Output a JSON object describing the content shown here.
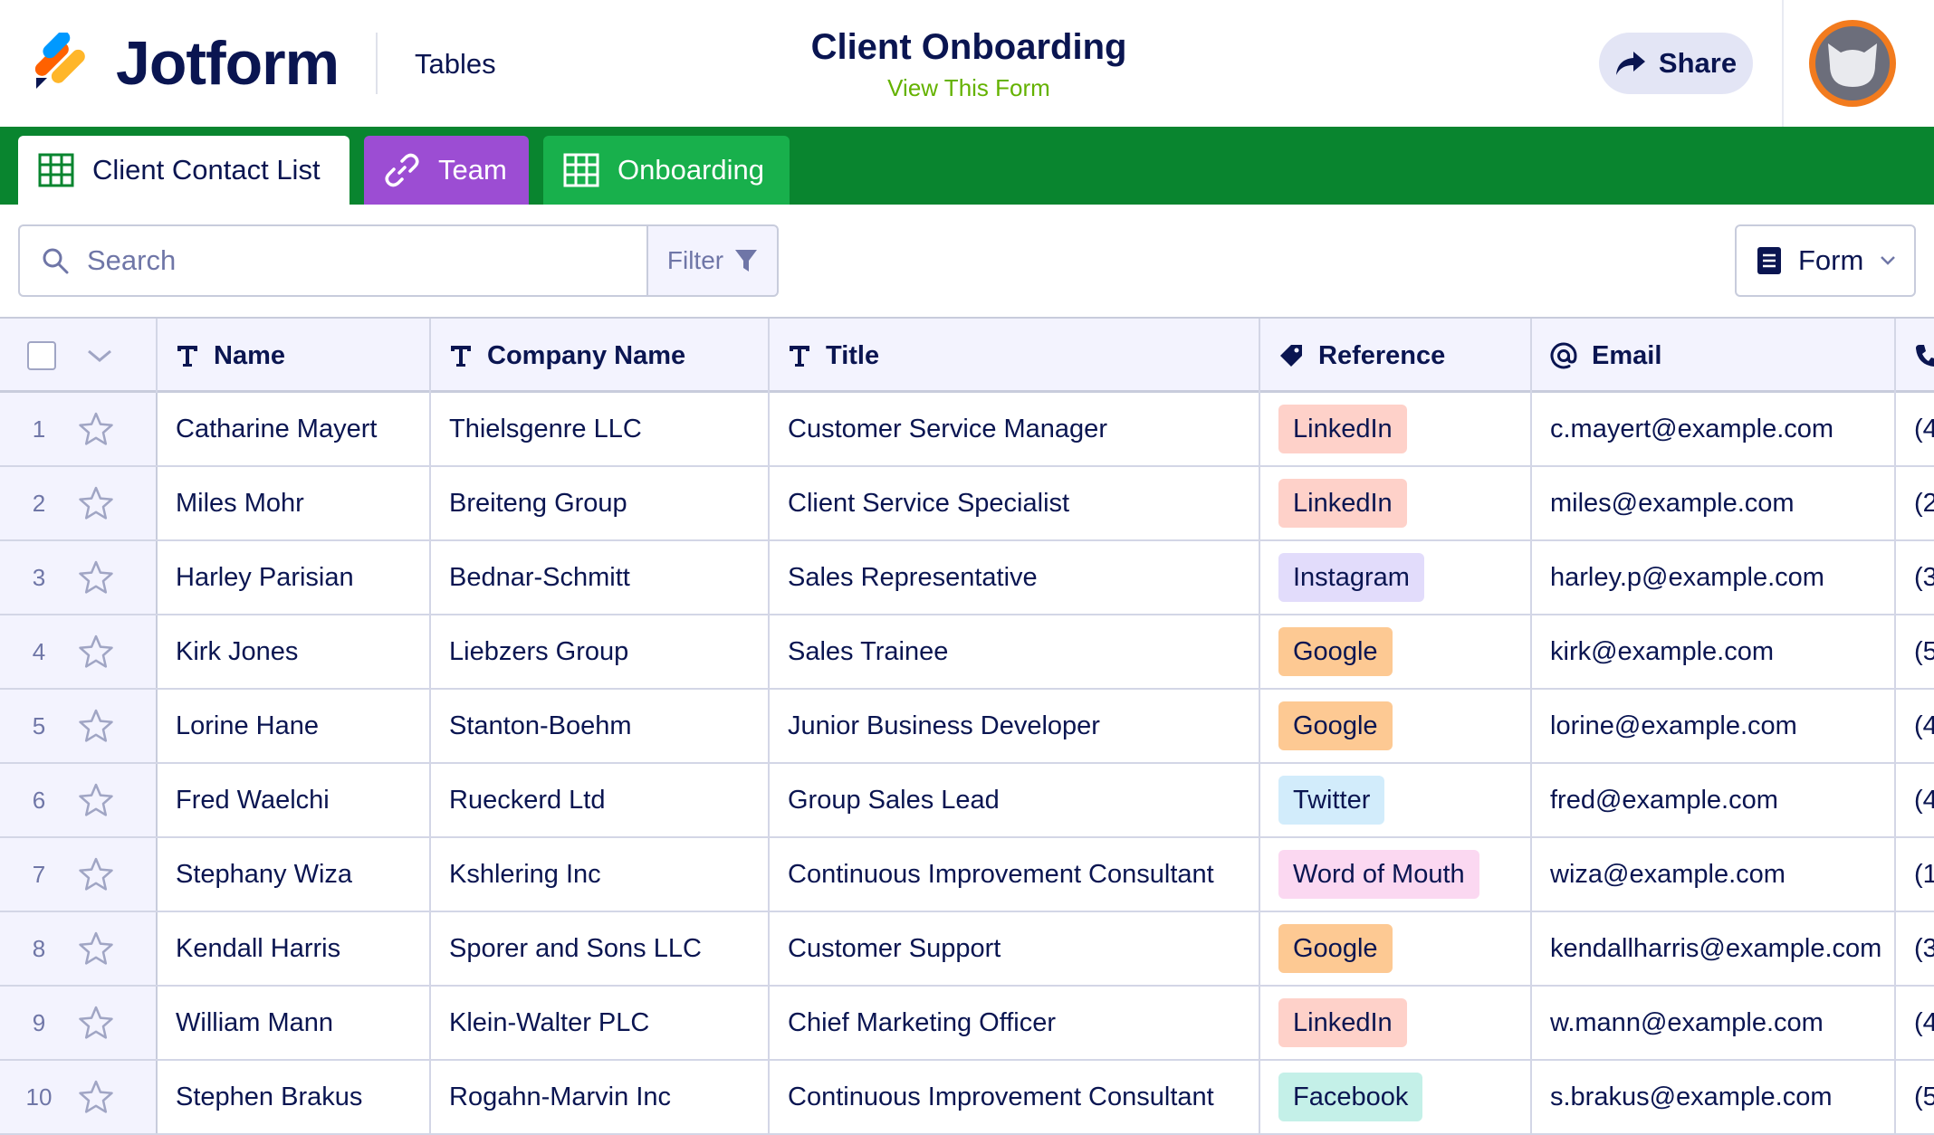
{
  "header": {
    "brand": "Jotform",
    "section": "Tables",
    "title": "Client Onboarding",
    "subtitle_link": "View This Form",
    "share_label": "Share",
    "accent_color": "#0a1551",
    "link_color": "#64b200"
  },
  "tabs": [
    {
      "label": "Client Contact List",
      "icon": "grid-icon",
      "color": "#ffffff"
    },
    {
      "label": "Team",
      "icon": "link-icon",
      "color": "#9c4dd3"
    },
    {
      "label": "Onboarding",
      "icon": "grid-icon",
      "color": "#18b04c"
    }
  ],
  "toolbar": {
    "search_placeholder": "Search",
    "filter_label": "Filter",
    "form_label": "Form"
  },
  "columns": [
    {
      "label": "Name",
      "icon": "text-type-icon"
    },
    {
      "label": "Company Name",
      "icon": "text-type-icon"
    },
    {
      "label": "Title",
      "icon": "text-type-icon"
    },
    {
      "label": "Reference",
      "icon": "tag-icon"
    },
    {
      "label": "Email",
      "icon": "at-icon"
    },
    {
      "label": "",
      "icon": "phone-icon"
    }
  ],
  "reference_colors": {
    "LinkedIn": "#fed1c9",
    "Instagram": "#e2dcfb",
    "Google": "#fdc993",
    "Twitter": "#d2ecfb",
    "Word of Mouth": "#fbd8f1",
    "Facebook": "#c4f0e8"
  },
  "rows": [
    {
      "num": "1",
      "name": "Catharine Mayert",
      "company": "Thielsgenre LLC",
      "title": "Customer Service Manager",
      "reference": "LinkedIn",
      "email": "c.mayert@example.com",
      "phone": "(4"
    },
    {
      "num": "2",
      "name": "Miles Mohr",
      "company": "Breiteng Group",
      "title": "Client Service Specialist",
      "reference": "LinkedIn",
      "email": "miles@example.com",
      "phone": "(2"
    },
    {
      "num": "3",
      "name": "Harley Parisian",
      "company": "Bednar-Schmitt",
      "title": "Sales Representative",
      "reference": "Instagram",
      "email": "harley.p@example.com",
      "phone": "(3"
    },
    {
      "num": "4",
      "name": "Kirk Jones",
      "company": "Liebzers Group",
      "title": "Sales Trainee",
      "reference": "Google",
      "email": "kirk@example.com",
      "phone": "(5"
    },
    {
      "num": "5",
      "name": "Lorine Hane",
      "company": "Stanton-Boehm",
      "title": "Junior Business Developer",
      "reference": "Google",
      "email": "lorine@example.com",
      "phone": "(4"
    },
    {
      "num": "6",
      "name": "Fred Waelchi",
      "company": "Rueckerd Ltd",
      "title": "Group Sales Lead",
      "reference": "Twitter",
      "email": "fred@example.com",
      "phone": "(4"
    },
    {
      "num": "7",
      "name": "Stephany Wiza",
      "company": "Kshlering Inc",
      "title": "Continuous Improvement Consultant",
      "reference": "Word of Mouth",
      "email": "wiza@example.com",
      "phone": "(1"
    },
    {
      "num": "8",
      "name": "Kendall Harris",
      "company": "Sporer and Sons LLC",
      "title": "Customer Support",
      "reference": "Google",
      "email": "kendallharris@example.com",
      "phone": "(3"
    },
    {
      "num": "9",
      "name": "William Mann",
      "company": "Klein-Walter PLC",
      "title": "Chief Marketing Officer",
      "reference": "LinkedIn",
      "email": "w.mann@example.com",
      "phone": "(4"
    },
    {
      "num": "10",
      "name": "Stephen Brakus",
      "company": "Rogahn-Marvin Inc",
      "title": "Continuous Improvement Consultant",
      "reference": "Facebook",
      "email": "s.brakus@example.com",
      "phone": "(5"
    }
  ]
}
